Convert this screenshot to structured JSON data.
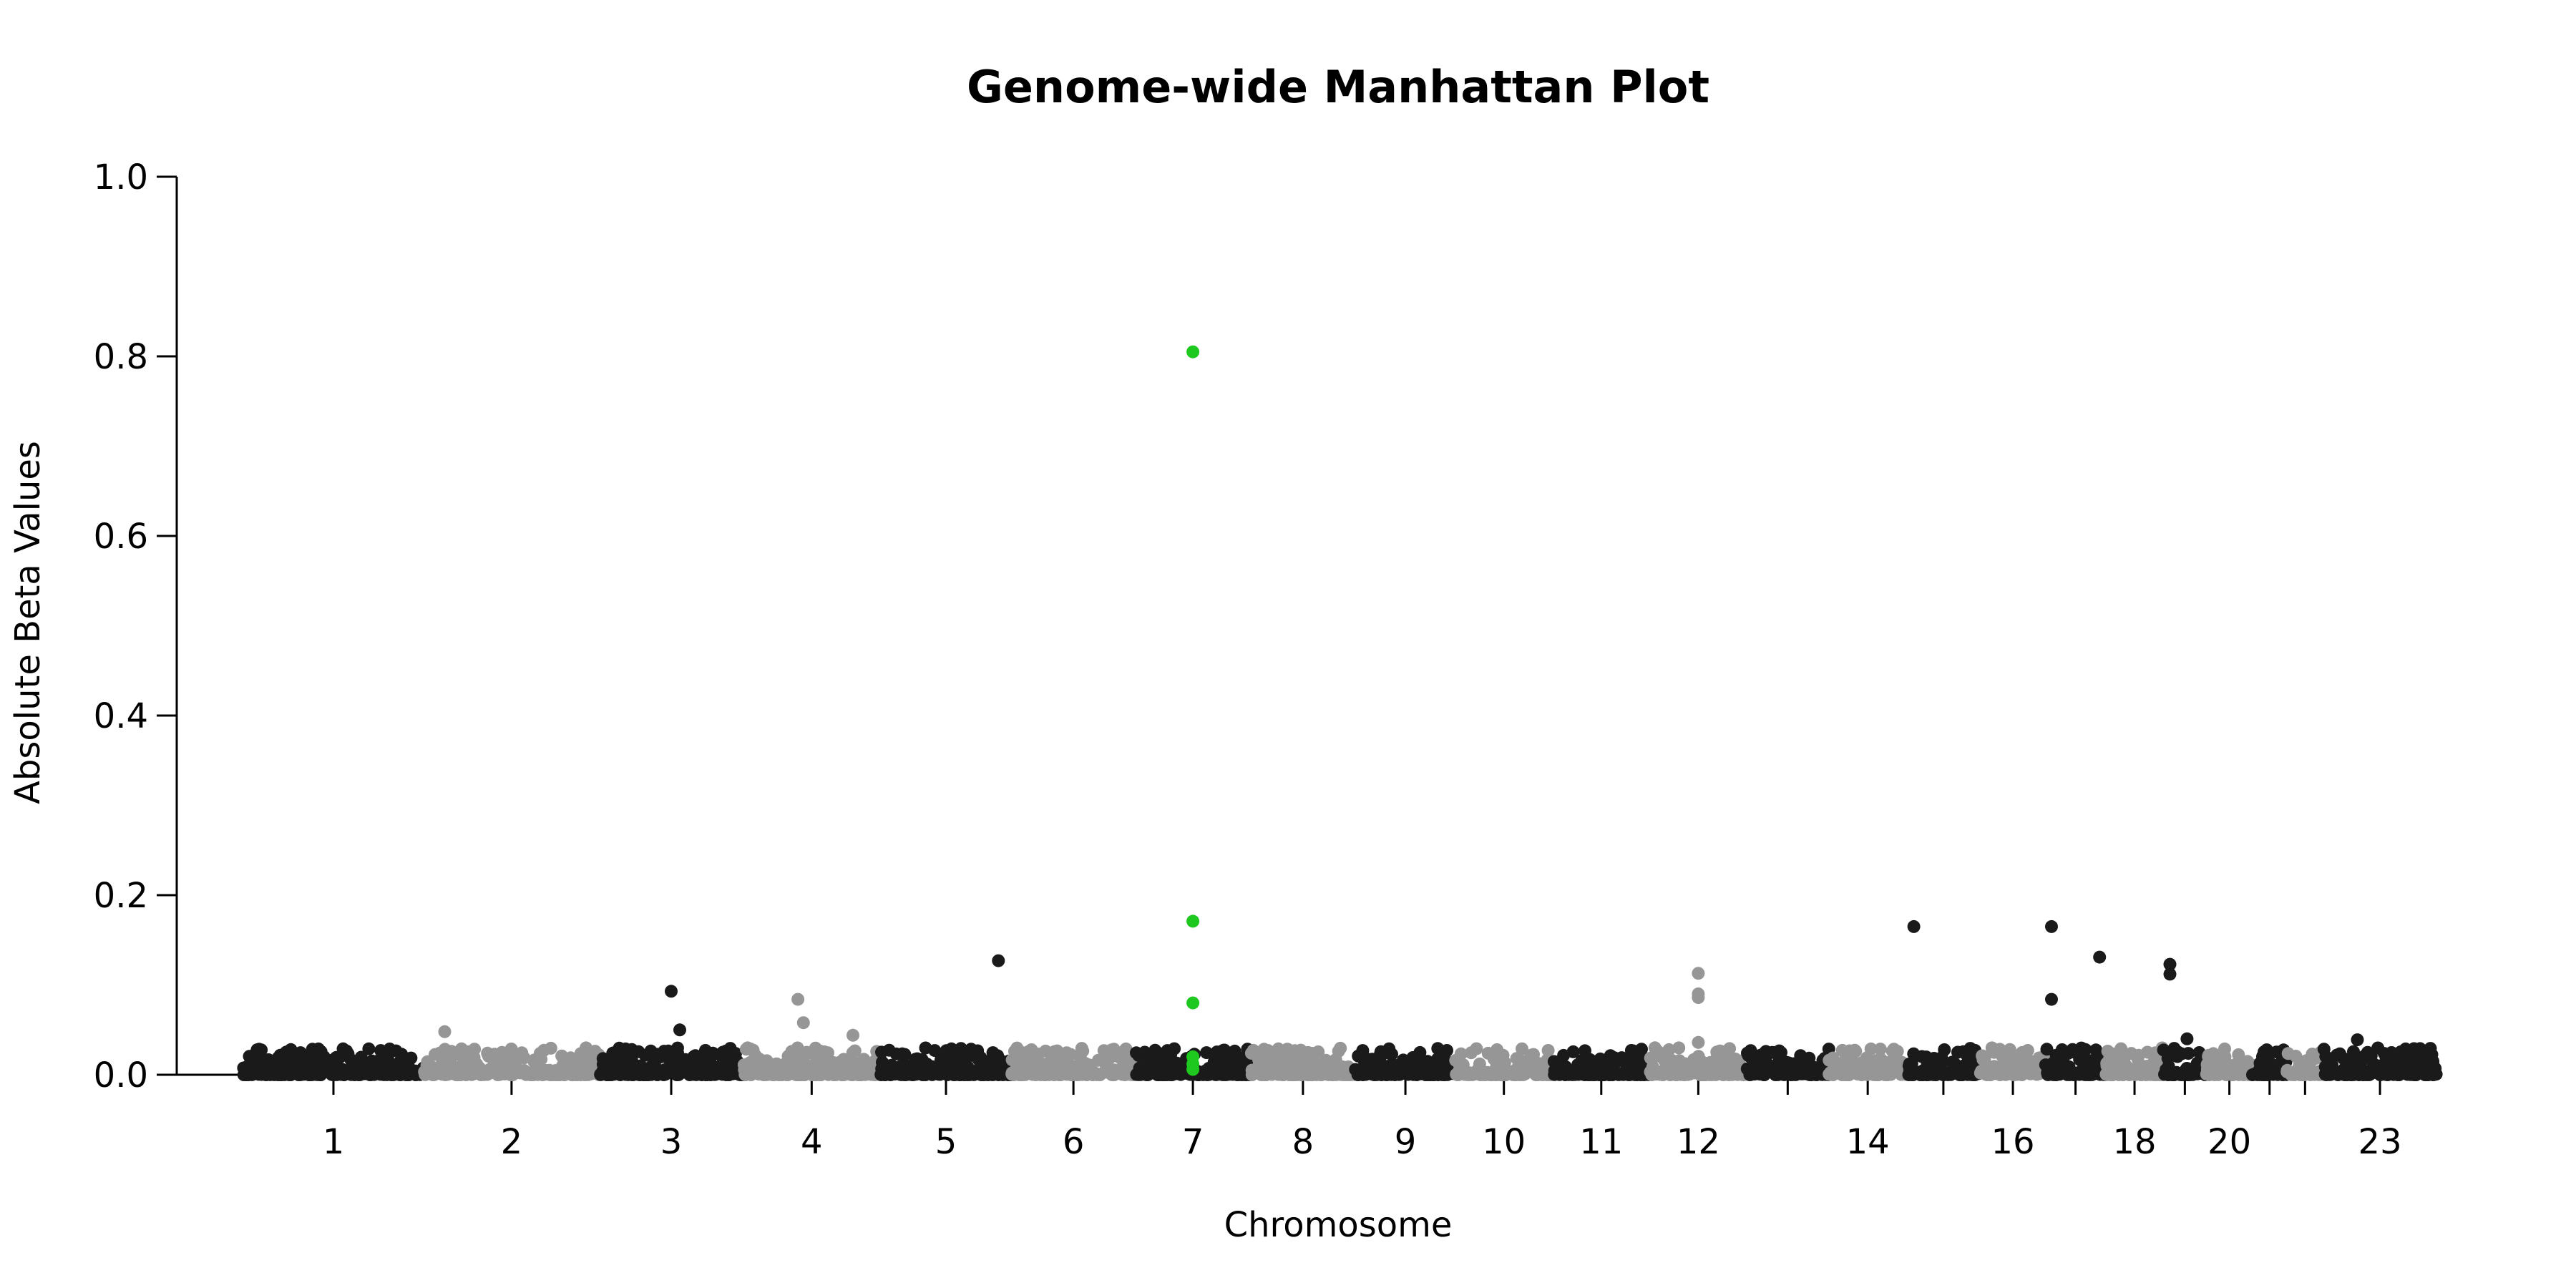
{
  "chart_data": {
    "type": "scatter",
    "title": "Genome-wide Manhattan Plot",
    "xlabel": "Chromosome",
    "ylabel": "Absolute Beta Values",
    "ylim": [
      0,
      1.0
    ],
    "y_ticks": [
      "0.0",
      "0.2",
      "0.4",
      "0.6",
      "0.8",
      "1.0"
    ],
    "y_tick_values": [
      0,
      0.2,
      0.4,
      0.6,
      0.8,
      1.0
    ],
    "grid": false,
    "legend": "none",
    "colors": {
      "odd_chromosome": "#1a1a1a",
      "even_chromosome": "#969696",
      "highlight": "#1ec81e"
    },
    "chromosomes": [
      {
        "chr": "1",
        "label": "1",
        "length": 249
      },
      {
        "chr": "2",
        "label": "2",
        "length": 243
      },
      {
        "chr": "3",
        "label": "3",
        "length": 198
      },
      {
        "chr": "4",
        "label": "4",
        "length": 190
      },
      {
        "chr": "5",
        "label": "5",
        "length": 181
      },
      {
        "chr": "6",
        "label": "6",
        "length": 171
      },
      {
        "chr": "7",
        "label": "7",
        "length": 159
      },
      {
        "chr": "8",
        "label": "8",
        "length": 145
      },
      {
        "chr": "9",
        "label": "9",
        "length": 138
      },
      {
        "chr": "10",
        "label": "10",
        "length": 134
      },
      {
        "chr": "11",
        "label": "11",
        "length": 135
      },
      {
        "chr": "12",
        "label": "12",
        "length": 133
      },
      {
        "chr": "13",
        "label": "",
        "length": 114
      },
      {
        "chr": "14",
        "label": "14",
        "length": 107
      },
      {
        "chr": "15",
        "label": "",
        "length": 102
      },
      {
        "chr": "16",
        "label": "16",
        "length": 90
      },
      {
        "chr": "17",
        "label": "",
        "length": 83
      },
      {
        "chr": "18",
        "label": "18",
        "length": 80
      },
      {
        "chr": "19",
        "label": "",
        "length": 59
      },
      {
        "chr": "20",
        "label": "20",
        "length": 64
      },
      {
        "chr": "21",
        "label": "",
        "length": 47
      },
      {
        "chr": "22",
        "label": "",
        "length": 51
      },
      {
        "chr": "23",
        "label": "23",
        "length": 156
      }
    ],
    "notable_points": [
      {
        "chr": "3",
        "pos": 0.5,
        "value": 0.093
      },
      {
        "chr": "3",
        "pos": 0.56,
        "value": 0.05
      },
      {
        "chr": "2",
        "pos": 0.12,
        "value": 0.048
      },
      {
        "chr": "4",
        "pos": 0.4,
        "value": 0.084
      },
      {
        "chr": "4",
        "pos": 0.44,
        "value": 0.058
      },
      {
        "chr": "4",
        "pos": 0.8,
        "value": 0.044
      },
      {
        "chr": "5",
        "pos": 0.9,
        "value": 0.127
      },
      {
        "chr": "7",
        "pos": 0.5,
        "value": 0.805,
        "highlight": true
      },
      {
        "chr": "7",
        "pos": 0.5,
        "value": 0.171,
        "highlight": true
      },
      {
        "chr": "7",
        "pos": 0.5,
        "value": 0.08,
        "highlight": true
      },
      {
        "chr": "7",
        "pos": 0.5,
        "value": 0.02,
        "highlight": true
      },
      {
        "chr": "7",
        "pos": 0.5,
        "value": 0.012,
        "highlight": true
      },
      {
        "chr": "7",
        "pos": 0.5,
        "value": 0.006,
        "highlight": true
      },
      {
        "chr": "12",
        "pos": 0.05,
        "value": 0.03
      },
      {
        "chr": "12",
        "pos": 0.5,
        "value": 0.113
      },
      {
        "chr": "12",
        "pos": 0.5,
        "value": 0.09
      },
      {
        "chr": "12",
        "pos": 0.5,
        "value": 0.086
      },
      {
        "chr": "12",
        "pos": 0.5,
        "value": 0.036
      },
      {
        "chr": "15",
        "pos": 0.1,
        "value": 0.165
      },
      {
        "chr": "17",
        "pos": 0.1,
        "value": 0.165
      },
      {
        "chr": "17",
        "pos": 0.1,
        "value": 0.084
      },
      {
        "chr": "17",
        "pos": 0.9,
        "value": 0.131
      },
      {
        "chr": "19",
        "pos": 0.15,
        "value": 0.123
      },
      {
        "chr": "19",
        "pos": 0.15,
        "value": 0.112
      },
      {
        "chr": "19",
        "pos": 0.55,
        "value": 0.04
      },
      {
        "chr": "23",
        "pos": 0.3,
        "value": 0.039
      }
    ],
    "background_level": {
      "typical_max": 0.03,
      "note_points_per_chromosome_scale": 0.9
    }
  }
}
